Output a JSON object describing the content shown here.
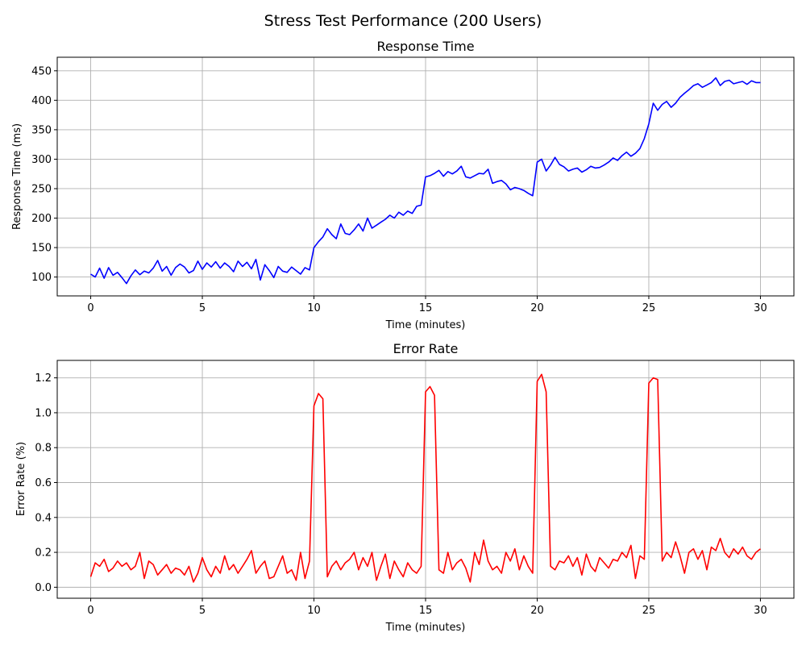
{
  "figure": {
    "suptitle": "Stress Test Performance (200 Users)"
  },
  "chart_data": [
    {
      "type": "line",
      "title": "Response Time",
      "xlabel": "Time (minutes)",
      "ylabel": "Response Time (ms)",
      "xlim": [
        -1.5,
        31.5
      ],
      "ylim": [
        68,
        473
      ],
      "xticks": [
        0,
        5,
        10,
        15,
        20,
        25,
        30
      ],
      "yticks": [
        100,
        150,
        200,
        250,
        300,
        350,
        400,
        450
      ],
      "grid": true,
      "series": [
        {
          "color": "#0000ff",
          "x": [
            0,
            0.2,
            0.4,
            0.6,
            0.8,
            1.0,
            1.2,
            1.4,
            1.6,
            1.8,
            2.0,
            2.2,
            2.4,
            2.6,
            2.8,
            3.0,
            3.2,
            3.4,
            3.6,
            3.8,
            4.0,
            4.2,
            4.4,
            4.6,
            4.8,
            5.0,
            5.2,
            5.4,
            5.6,
            5.8,
            6.0,
            6.2,
            6.4,
            6.6,
            6.8,
            7.0,
            7.2,
            7.4,
            7.6,
            7.8,
            8.0,
            8.2,
            8.4,
            8.6,
            8.8,
            9.0,
            9.2,
            9.4,
            9.6,
            9.8,
            10.0,
            10.2,
            10.4,
            10.6,
            10.8,
            11.0,
            11.2,
            11.4,
            11.6,
            11.8,
            12.0,
            12.2,
            12.4,
            12.6,
            12.8,
            13.0,
            13.2,
            13.4,
            13.6,
            13.8,
            14.0,
            14.2,
            14.4,
            14.6,
            14.8,
            15.0,
            15.2,
            15.4,
            15.6,
            15.8,
            16.0,
            16.2,
            16.4,
            16.6,
            16.8,
            17.0,
            17.2,
            17.4,
            17.6,
            17.8,
            18.0,
            18.2,
            18.4,
            18.6,
            18.8,
            19.0,
            19.2,
            19.4,
            19.6,
            19.8,
            20.0,
            20.2,
            20.4,
            20.6,
            20.8,
            21.0,
            21.2,
            21.4,
            21.6,
            21.8,
            22.0,
            22.2,
            22.4,
            22.6,
            22.8,
            23.0,
            23.2,
            23.4,
            23.6,
            23.8,
            24.0,
            24.2,
            24.4,
            24.6,
            24.8,
            25.0,
            25.2,
            25.4,
            25.6,
            25.8,
            26.0,
            26.2,
            26.4,
            26.6,
            26.8,
            27.0,
            27.2,
            27.4,
            27.6,
            27.8,
            28.0,
            28.2,
            28.4,
            28.6,
            28.8,
            29.0,
            29.2,
            29.4,
            29.6,
            29.8,
            30.0
          ],
          "y": [
            105,
            100,
            115,
            98,
            116,
            103,
            108,
            99,
            89,
            102,
            112,
            104,
            110,
            107,
            115,
            128,
            110,
            118,
            103,
            116,
            122,
            117,
            107,
            111,
            127,
            113,
            124,
            117,
            126,
            115,
            124,
            118,
            109,
            127,
            118,
            125,
            114,
            130,
            95,
            121,
            111,
            99,
            118,
            110,
            108,
            117,
            111,
            105,
            116,
            112,
            150,
            160,
            168,
            182,
            172,
            165,
            190,
            174,
            172,
            180,
            190,
            178,
            200,
            183,
            188,
            193,
            198,
            205,
            200,
            210,
            205,
            212,
            208,
            220,
            222,
            270,
            272,
            276,
            281,
            271,
            279,
            275,
            280,
            288,
            270,
            268,
            272,
            276,
            275,
            283,
            259,
            262,
            264,
            258,
            248,
            252,
            250,
            247,
            242,
            238,
            295,
            300,
            280,
            290,
            303,
            291,
            287,
            280,
            283,
            285,
            278,
            282,
            288,
            285,
            286,
            290,
            295,
            302,
            298,
            306,
            312,
            305,
            310,
            318,
            335,
            360,
            395,
            383,
            393,
            398,
            388,
            395,
            405,
            412,
            418,
            425,
            428,
            422,
            426,
            430,
            438,
            425,
            432,
            434,
            428,
            430,
            432,
            427,
            433,
            430,
            430
          ]
        }
      ]
    },
    {
      "type": "line",
      "title": "Error Rate",
      "xlabel": "Time (minutes)",
      "ylabel": "Error Rate (%)",
      "xlim": [
        -1.5,
        31.5
      ],
      "ylim": [
        -0.063,
        1.3
      ],
      "xticks": [
        0,
        5,
        10,
        15,
        20,
        25,
        30
      ],
      "yticks": [
        0.0,
        0.2,
        0.4,
        0.6,
        0.8,
        1.0,
        1.2
      ],
      "grid": true,
      "series": [
        {
          "color": "#ff0000",
          "x": [
            0,
            0.2,
            0.4,
            0.6,
            0.8,
            1.0,
            1.2,
            1.4,
            1.6,
            1.8,
            2.0,
            2.2,
            2.4,
            2.6,
            2.8,
            3.0,
            3.2,
            3.4,
            3.6,
            3.8,
            4.0,
            4.2,
            4.4,
            4.6,
            4.8,
            5.0,
            5.2,
            5.4,
            5.6,
            5.8,
            6.0,
            6.2,
            6.4,
            6.6,
            6.8,
            7.0,
            7.2,
            7.4,
            7.6,
            7.8,
            8.0,
            8.2,
            8.4,
            8.6,
            8.8,
            9.0,
            9.2,
            9.4,
            9.6,
            9.8,
            10.0,
            10.2,
            10.4,
            10.6,
            10.8,
            11.0,
            11.2,
            11.4,
            11.6,
            11.8,
            12.0,
            12.2,
            12.4,
            12.6,
            12.8,
            13.0,
            13.2,
            13.4,
            13.6,
            13.8,
            14.0,
            14.2,
            14.4,
            14.6,
            14.8,
            15.0,
            15.2,
            15.4,
            15.6,
            15.8,
            16.0,
            16.2,
            16.4,
            16.6,
            16.8,
            17.0,
            17.2,
            17.4,
            17.6,
            17.8,
            18.0,
            18.2,
            18.4,
            18.6,
            18.8,
            19.0,
            19.2,
            19.4,
            19.6,
            19.8,
            20.0,
            20.2,
            20.4,
            20.6,
            20.8,
            21.0,
            21.2,
            21.4,
            21.6,
            21.8,
            22.0,
            22.2,
            22.4,
            22.6,
            22.8,
            23.0,
            23.2,
            23.4,
            23.6,
            23.8,
            24.0,
            24.2,
            24.4,
            24.6,
            24.8,
            25.0,
            25.2,
            25.4,
            25.6,
            25.8,
            26.0,
            26.2,
            26.4,
            26.6,
            26.8,
            27.0,
            27.2,
            27.4,
            27.6,
            27.8,
            28.0,
            28.2,
            28.4,
            28.6,
            28.8,
            29.0,
            29.2,
            29.4,
            29.6,
            29.8,
            30.0
          ],
          "y": [
            0.06,
            0.14,
            0.12,
            0.16,
            0.09,
            0.11,
            0.15,
            0.12,
            0.14,
            0.1,
            0.12,
            0.2,
            0.05,
            0.15,
            0.13,
            0.07,
            0.1,
            0.13,
            0.08,
            0.11,
            0.1,
            0.07,
            0.12,
            0.03,
            0.08,
            0.17,
            0.1,
            0.06,
            0.12,
            0.08,
            0.18,
            0.1,
            0.13,
            0.08,
            0.12,
            0.16,
            0.21,
            0.08,
            0.12,
            0.15,
            0.05,
            0.06,
            0.12,
            0.18,
            0.08,
            0.1,
            0.04,
            0.2,
            0.05,
            0.15,
            1.04,
            1.11,
            1.08,
            0.06,
            0.12,
            0.15,
            0.1,
            0.14,
            0.16,
            0.2,
            0.1,
            0.17,
            0.12,
            0.2,
            0.04,
            0.12,
            0.19,
            0.05,
            0.15,
            0.1,
            0.06,
            0.14,
            0.1,
            0.08,
            0.12,
            1.12,
            1.15,
            1.1,
            0.1,
            0.08,
            0.2,
            0.1,
            0.14,
            0.16,
            0.11,
            0.03,
            0.2,
            0.13,
            0.27,
            0.15,
            0.1,
            0.12,
            0.08,
            0.2,
            0.15,
            0.22,
            0.1,
            0.18,
            0.12,
            0.08,
            1.18,
            1.22,
            1.12,
            0.12,
            0.1,
            0.15,
            0.14,
            0.18,
            0.12,
            0.17,
            0.07,
            0.19,
            0.12,
            0.09,
            0.17,
            0.14,
            0.11,
            0.16,
            0.15,
            0.2,
            0.17,
            0.24,
            0.05,
            0.18,
            0.16,
            1.17,
            1.2,
            1.19,
            0.15,
            0.2,
            0.17,
            0.26,
            0.18,
            0.08,
            0.2,
            0.22,
            0.16,
            0.21,
            0.1,
            0.23,
            0.21,
            0.28,
            0.2,
            0.17,
            0.22,
            0.19,
            0.23,
            0.18,
            0.16,
            0.2,
            0.22
          ]
        }
      ]
    }
  ]
}
